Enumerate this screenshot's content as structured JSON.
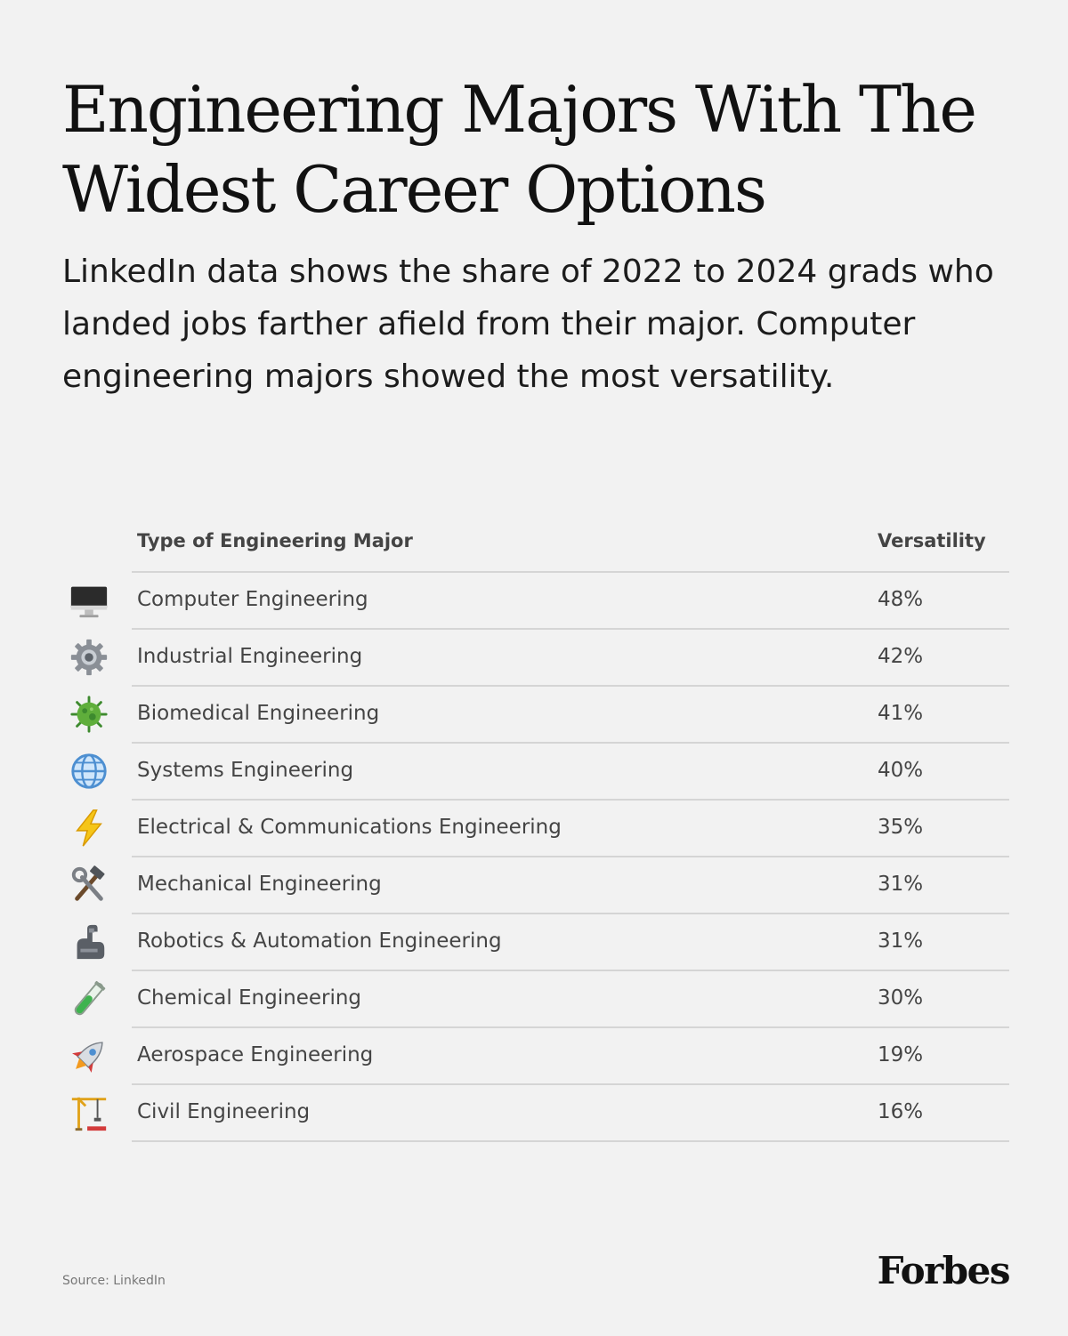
{
  "title": "Engineering Majors With The Widest Career Options",
  "subtitle": "LinkedIn data shows the share of 2022 to 2024 grads who landed jobs farther afield from their major. Computer engineering majors showed the most versatility.",
  "chart_data": {
    "type": "table",
    "columns": [
      "Type of Engineering Major",
      "Versatility"
    ],
    "rows": [
      {
        "icon": "computer-icon",
        "major": "Computer Engineering",
        "versatility": "48%",
        "value": 48
      },
      {
        "icon": "gear-icon",
        "major": "Industrial Engineering",
        "versatility": "42%",
        "value": 42
      },
      {
        "icon": "microbe-icon",
        "major": "Biomedical Engineering",
        "versatility": "41%",
        "value": 41
      },
      {
        "icon": "globe-icon",
        "major": "Systems Engineering",
        "versatility": "40%",
        "value": 40
      },
      {
        "icon": "lightning-icon",
        "major": "Electrical & Communications Engineering",
        "versatility": "35%",
        "value": 35
      },
      {
        "icon": "hammer-wrench-icon",
        "major": "Mechanical Engineering",
        "versatility": "31%",
        "value": 31
      },
      {
        "icon": "mechanical-arm-icon",
        "major": "Robotics & Automation Engineering",
        "versatility": "31%",
        "value": 31
      },
      {
        "icon": "test-tube-icon",
        "major": "Chemical Engineering",
        "versatility": "30%",
        "value": 30
      },
      {
        "icon": "rocket-icon",
        "major": "Aerospace Engineering",
        "versatility": "19%",
        "value": 19
      },
      {
        "icon": "crane-icon",
        "major": "Civil Engineering",
        "versatility": "16%",
        "value": 16
      }
    ]
  },
  "source": "Source: LinkedIn",
  "brand": "Forbes"
}
